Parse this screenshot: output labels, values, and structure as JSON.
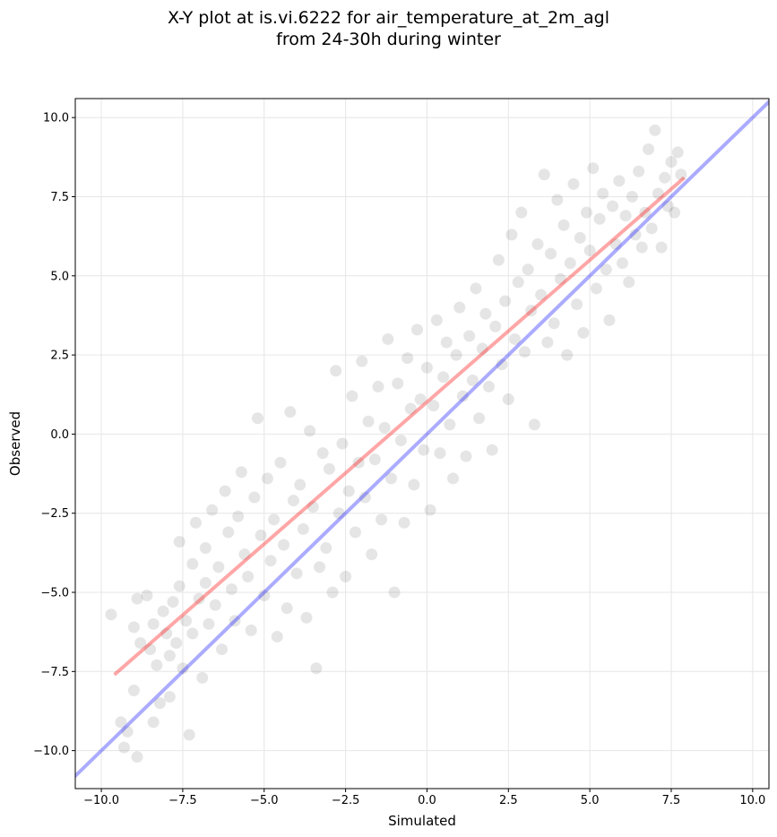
{
  "chart_data": {
    "type": "scatter",
    "title": "X-Y plot at is.vi.6222 for air_temperature_at_2m_agl",
    "subtitle": "from 24-30h during winter",
    "xlabel": "Simulated",
    "ylabel": "Observed",
    "xlim": [
      -10.8,
      10.5
    ],
    "ylim": [
      -11.2,
      10.6
    ],
    "xticks": [
      -10.0,
      -7.5,
      -5.0,
      -2.5,
      0.0,
      2.5,
      5.0,
      7.5,
      10.0
    ],
    "xtick_labels": [
      "−10.0",
      "−7.5",
      "−5.0",
      "−2.5",
      "0.0",
      "2.5",
      "5.0",
      "7.5",
      "10.0"
    ],
    "yticks": [
      -10.0,
      -7.5,
      -5.0,
      -2.5,
      0.0,
      2.5,
      5.0,
      7.5,
      10.0
    ],
    "ytick_labels": [
      "−10.0",
      "−7.5",
      "−5.0",
      "−2.5",
      "0.0",
      "2.5",
      "5.0",
      "7.5",
      "10.0"
    ],
    "grid": true,
    "colors": {
      "points": "#000000",
      "regression_line": "#ff0000",
      "identity_line": "#0000ff"
    },
    "regression_line": {
      "x": [
        -9.6,
        7.9
      ],
      "y": [
        -7.6,
        8.1
      ]
    },
    "identity_line": {
      "x": [
        -11.2,
        10.6
      ],
      "y": [
        -11.2,
        10.6
      ]
    },
    "points": [
      [
        -9.7,
        -5.7
      ],
      [
        -9.4,
        -9.1
      ],
      [
        -9.3,
        -9.9
      ],
      [
        -9.2,
        -9.4
      ],
      [
        -9.0,
        -6.1
      ],
      [
        -9.0,
        -8.1
      ],
      [
        -8.9,
        -10.2
      ],
      [
        -8.9,
        -5.2
      ],
      [
        -8.8,
        -6.6
      ],
      [
        -8.6,
        -5.1
      ],
      [
        -8.5,
        -6.8
      ],
      [
        -8.4,
        -6.0
      ],
      [
        -8.4,
        -9.1
      ],
      [
        -8.3,
        -7.3
      ],
      [
        -8.2,
        -8.5
      ],
      [
        -8.1,
        -5.6
      ],
      [
        -8.0,
        -6.3
      ],
      [
        -7.9,
        -7.0
      ],
      [
        -7.9,
        -8.3
      ],
      [
        -7.8,
        -5.3
      ],
      [
        -7.7,
        -6.6
      ],
      [
        -7.6,
        -4.8
      ],
      [
        -7.6,
        -3.4
      ],
      [
        -7.5,
        -7.4
      ],
      [
        -7.4,
        -5.9
      ],
      [
        -7.3,
        -9.5
      ],
      [
        -7.2,
        -4.1
      ],
      [
        -7.2,
        -6.3
      ],
      [
        -7.1,
        -2.8
      ],
      [
        -7.0,
        -5.2
      ],
      [
        -6.9,
        -7.7
      ],
      [
        -6.8,
        -3.6
      ],
      [
        -6.8,
        -4.7
      ],
      [
        -6.7,
        -6.0
      ],
      [
        -6.6,
        -2.4
      ],
      [
        -6.5,
        -5.4
      ],
      [
        -6.4,
        -4.2
      ],
      [
        -6.3,
        -6.8
      ],
      [
        -6.2,
        -1.8
      ],
      [
        -6.1,
        -3.1
      ],
      [
        -6.0,
        -4.9
      ],
      [
        -5.9,
        -5.9
      ],
      [
        -5.8,
        -2.6
      ],
      [
        -5.7,
        -1.2
      ],
      [
        -5.6,
        -3.8
      ],
      [
        -5.5,
        -4.5
      ],
      [
        -5.4,
        -6.2
      ],
      [
        -5.3,
        -2.0
      ],
      [
        -5.2,
        0.5
      ],
      [
        -5.1,
        -3.2
      ],
      [
        -5.0,
        -5.1
      ],
      [
        -4.9,
        -1.4
      ],
      [
        -4.8,
        -4.0
      ],
      [
        -4.7,
        -2.7
      ],
      [
        -4.6,
        -6.4
      ],
      [
        -4.5,
        -0.9
      ],
      [
        -4.4,
        -3.5
      ],
      [
        -4.3,
        -5.5
      ],
      [
        -4.2,
        0.7
      ],
      [
        -4.1,
        -2.1
      ],
      [
        -4.0,
        -4.4
      ],
      [
        -3.9,
        -1.6
      ],
      [
        -3.8,
        -3.0
      ],
      [
        -3.7,
        -5.8
      ],
      [
        -3.6,
        0.1
      ],
      [
        -3.5,
        -2.3
      ],
      [
        -3.4,
        -7.4
      ],
      [
        -3.3,
        -4.2
      ],
      [
        -3.2,
        -0.6
      ],
      [
        -3.1,
        -3.6
      ],
      [
        -3.0,
        -1.1
      ],
      [
        -2.9,
        -5.0
      ],
      [
        -2.8,
        2.0
      ],
      [
        -2.7,
        -2.5
      ],
      [
        -2.6,
        -0.3
      ],
      [
        -2.5,
        -4.5
      ],
      [
        -2.4,
        -1.8
      ],
      [
        -2.3,
        1.2
      ],
      [
        -2.2,
        -3.1
      ],
      [
        -2.1,
        -0.9
      ],
      [
        -2.0,
        2.3
      ],
      [
        -1.9,
        -2.0
      ],
      [
        -1.8,
        0.4
      ],
      [
        -1.7,
        -3.8
      ],
      [
        -1.6,
        -0.8
      ],
      [
        -1.5,
        1.5
      ],
      [
        -1.4,
        -2.7
      ],
      [
        -1.3,
        0.2
      ],
      [
        -1.2,
        3.0
      ],
      [
        -1.1,
        -1.4
      ],
      [
        -1.0,
        -5.0
      ],
      [
        -0.9,
        1.6
      ],
      [
        -0.8,
        -0.2
      ],
      [
        -0.7,
        -2.8
      ],
      [
        -0.6,
        2.4
      ],
      [
        -0.5,
        0.8
      ],
      [
        -0.4,
        -1.6
      ],
      [
        -0.3,
        3.3
      ],
      [
        -0.2,
        1.1
      ],
      [
        -0.1,
        -0.5
      ],
      [
        0.0,
        2.1
      ],
      [
        0.1,
        -2.4
      ],
      [
        0.2,
        0.9
      ],
      [
        0.3,
        3.6
      ],
      [
        0.4,
        -0.6
      ],
      [
        0.5,
        1.8
      ],
      [
        0.6,
        2.9
      ],
      [
        0.7,
        0.3
      ],
      [
        0.8,
        -1.4
      ],
      [
        0.9,
        2.5
      ],
      [
        1.0,
        4.0
      ],
      [
        1.1,
        1.2
      ],
      [
        1.2,
        -0.7
      ],
      [
        1.3,
        3.1
      ],
      [
        1.4,
        1.7
      ],
      [
        1.5,
        4.6
      ],
      [
        1.6,
        0.5
      ],
      [
        1.7,
        2.7
      ],
      [
        1.8,
        3.8
      ],
      [
        1.9,
        1.5
      ],
      [
        2.0,
        -0.5
      ],
      [
        2.1,
        3.4
      ],
      [
        2.2,
        5.5
      ],
      [
        2.3,
        2.2
      ],
      [
        2.4,
        4.2
      ],
      [
        2.5,
        1.1
      ],
      [
        2.6,
        6.3
      ],
      [
        2.7,
        3.0
      ],
      [
        2.8,
        4.8
      ],
      [
        2.9,
        7.0
      ],
      [
        3.0,
        2.6
      ],
      [
        3.1,
        5.2
      ],
      [
        3.2,
        3.9
      ],
      [
        3.3,
        0.3
      ],
      [
        3.4,
        6.0
      ],
      [
        3.5,
        4.4
      ],
      [
        3.6,
        8.2
      ],
      [
        3.7,
        2.9
      ],
      [
        3.8,
        5.7
      ],
      [
        3.9,
        3.5
      ],
      [
        4.0,
        7.4
      ],
      [
        4.1,
        4.9
      ],
      [
        4.2,
        6.6
      ],
      [
        4.3,
        2.5
      ],
      [
        4.4,
        5.4
      ],
      [
        4.5,
        7.9
      ],
      [
        4.6,
        4.1
      ],
      [
        4.7,
        6.2
      ],
      [
        4.8,
        3.2
      ],
      [
        4.9,
        7.0
      ],
      [
        5.0,
        5.8
      ],
      [
        5.1,
        8.4
      ],
      [
        5.2,
        4.6
      ],
      [
        5.3,
        6.8
      ],
      [
        5.4,
        7.6
      ],
      [
        5.5,
        5.2
      ],
      [
        5.6,
        3.6
      ],
      [
        5.7,
        7.2
      ],
      [
        5.8,
        6.0
      ],
      [
        5.9,
        8.0
      ],
      [
        6.0,
        5.4
      ],
      [
        6.1,
        6.9
      ],
      [
        6.2,
        4.8
      ],
      [
        6.3,
        7.5
      ],
      [
        6.4,
        6.3
      ],
      [
        6.5,
        8.3
      ],
      [
        6.6,
        5.9
      ],
      [
        6.7,
        7.0
      ],
      [
        6.8,
        9.0
      ],
      [
        6.9,
        6.5
      ],
      [
        7.0,
        9.6
      ],
      [
        7.1,
        7.6
      ],
      [
        7.2,
        5.9
      ],
      [
        7.3,
        8.1
      ],
      [
        7.4,
        7.2
      ],
      [
        7.5,
        8.6
      ],
      [
        7.6,
        7.0
      ],
      [
        7.7,
        8.9
      ],
      [
        7.8,
        8.2
      ]
    ]
  }
}
